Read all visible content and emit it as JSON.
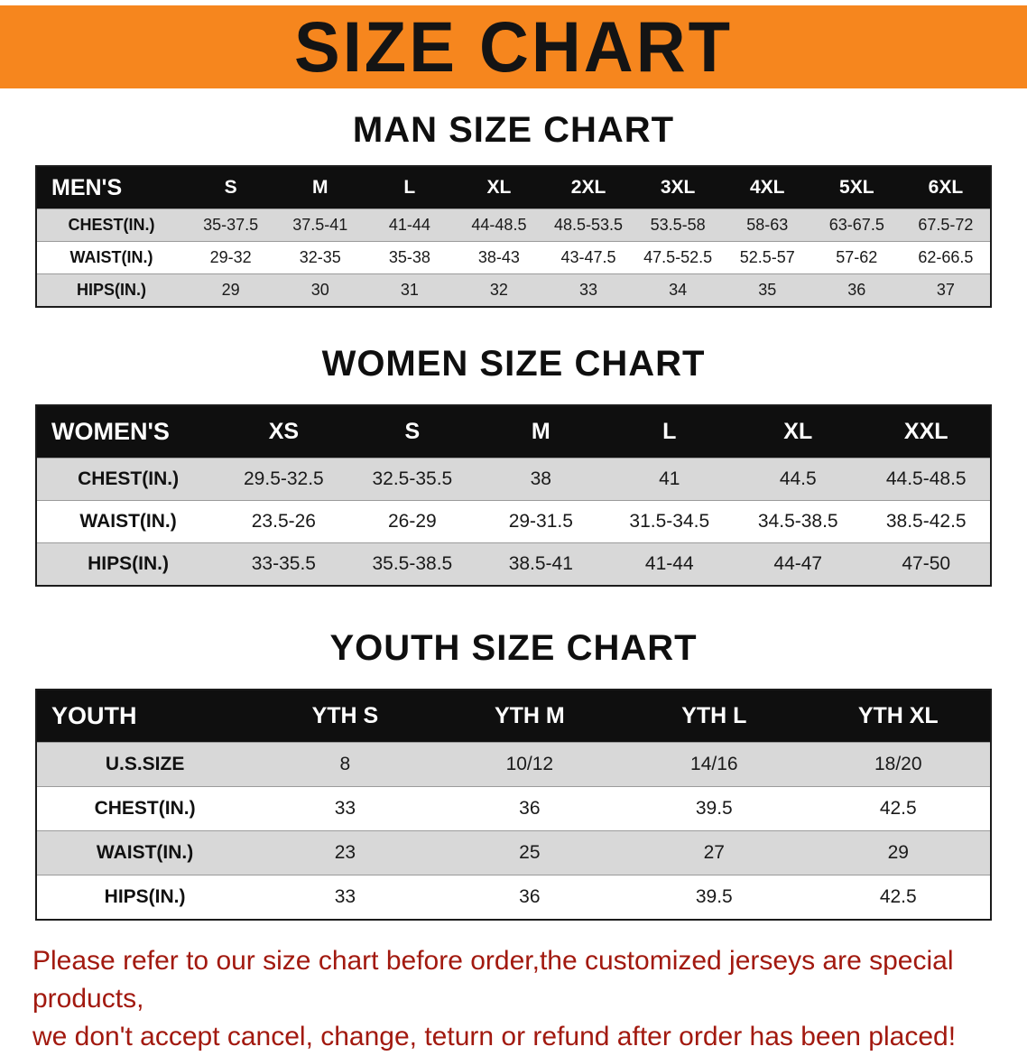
{
  "banner": {
    "title": "SIZE CHART",
    "bg_color": "#F6861E"
  },
  "colors": {
    "header_bg": "#0f0f0f",
    "row_gray": "#D8D8D8",
    "footer_red": "#A2190F"
  },
  "men": {
    "section_title": "MAN SIZE CHART",
    "header": [
      "MEN'S",
      "S",
      "M",
      "L",
      "XL",
      "2XL",
      "3XL",
      "4XL",
      "5XL",
      "6XL"
    ],
    "rows": [
      {
        "label": "CHEST(IN.)",
        "values": [
          "35-37.5",
          "37.5-41",
          "41-44",
          "44-48.5",
          "48.5-53.5",
          "53.5-58",
          "58-63",
          "63-67.5",
          "67.5-72"
        ]
      },
      {
        "label": "WAIST(IN.)",
        "values": [
          "29-32",
          "32-35",
          "35-38",
          "38-43",
          "43-47.5",
          "47.5-52.5",
          "52.5-57",
          "57-62",
          "62-66.5"
        ]
      },
      {
        "label": "HIPS(IN.)",
        "values": [
          "29",
          "30",
          "31",
          "32",
          "33",
          "34",
          "35",
          "36",
          "37"
        ]
      }
    ]
  },
  "women": {
    "section_title": "WOMEN SIZE CHART",
    "header": [
      "WOMEN'S",
      "XS",
      "S",
      "M",
      "L",
      "XL",
      "XXL"
    ],
    "rows": [
      {
        "label": "CHEST(IN.)",
        "values": [
          "29.5-32.5",
          "32.5-35.5",
          "38",
          "41",
          "44.5",
          "44.5-48.5"
        ]
      },
      {
        "label": "WAIST(IN.)",
        "values": [
          "23.5-26",
          "26-29",
          "29-31.5",
          "31.5-34.5",
          "34.5-38.5",
          "38.5-42.5"
        ]
      },
      {
        "label": "HIPS(IN.)",
        "values": [
          "33-35.5",
          "35.5-38.5",
          "38.5-41",
          "41-44",
          "44-47",
          "47-50"
        ]
      }
    ]
  },
  "youth": {
    "section_title": "YOUTH SIZE CHART",
    "header": [
      "YOUTH",
      "YTH S",
      "YTH M",
      "YTH L",
      "YTH XL"
    ],
    "rows": [
      {
        "label": "U.S.SIZE",
        "values": [
          "8",
          "10/12",
          "14/16",
          "18/20"
        ]
      },
      {
        "label": "CHEST(IN.)",
        "values": [
          "33",
          "36",
          "39.5",
          "42.5"
        ]
      },
      {
        "label": "WAIST(IN.)",
        "values": [
          "23",
          "25",
          "27",
          "29"
        ]
      },
      {
        "label": "HIPS(IN.)",
        "values": [
          "33",
          "36",
          "39.5",
          "42.5"
        ]
      }
    ]
  },
  "footer": {
    "line1": "Please refer to our size chart before order,the customized jerseys are special products,",
    "line2": "we don't accept cancel, change, teturn or refund after order has been placed!"
  }
}
